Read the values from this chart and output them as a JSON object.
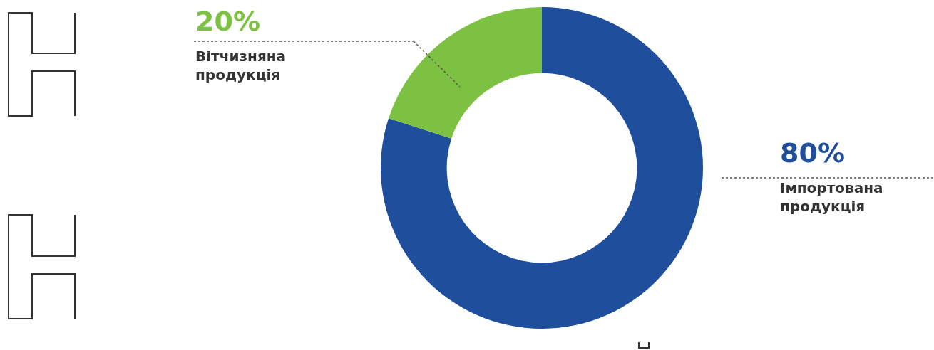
{
  "chart_data": {
    "type": "donut",
    "categories": [
      "Імпортована продукція",
      "Вітчизняна продукція"
    ],
    "values": [
      80,
      20
    ],
    "value_labels": [
      "80%",
      "20%"
    ],
    "colors": [
      "#1f4e9c",
      "#7dc142"
    ],
    "legend": false
  }
}
